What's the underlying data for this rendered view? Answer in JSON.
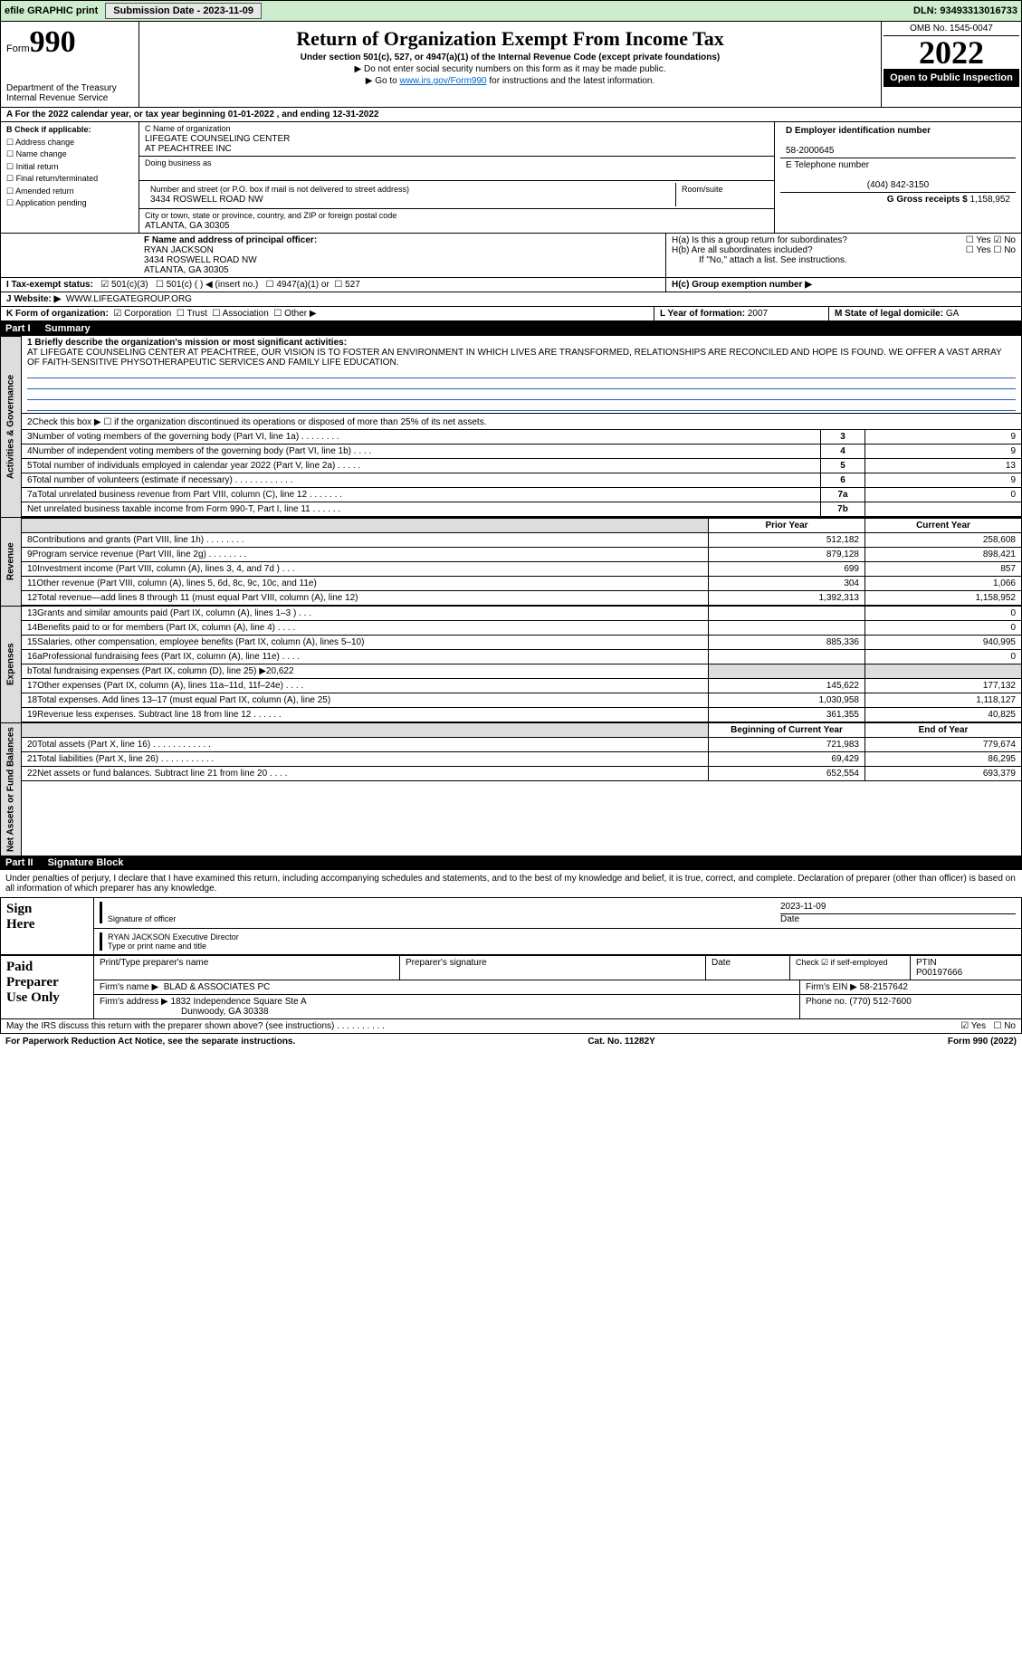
{
  "topbar": {
    "efile": "efile GRAPHIC print",
    "submission_label": "Submission Date - 2023-11-09",
    "dln_label": "DLN: 93493313016733"
  },
  "header": {
    "form_prefix": "Form",
    "form_no": "990",
    "title": "Return of Organization Exempt From Income Tax",
    "subtitle": "Under section 501(c), 527, or 4947(a)(1) of the Internal Revenue Code (except private foundations)",
    "note1": "▶ Do not enter social security numbers on this form as it may be made public.",
    "note2_pre": "▶ Go to ",
    "note2_link": "www.irs.gov/Form990",
    "note2_post": " for instructions and the latest information.",
    "dept": "Department of the Treasury",
    "irs": "Internal Revenue Service",
    "omb": "OMB No. 1545-0047",
    "year": "2022",
    "openpub": "Open to Public Inspection"
  },
  "A": {
    "line": "A For the 2022 calendar year, or tax year beginning 01-01-2022   , and ending 12-31-2022"
  },
  "B": {
    "label": "B Check if applicable:",
    "opts": [
      "Address change",
      "Name change",
      "Initial return",
      "Final return/terminated",
      "Amended return",
      "Application pending"
    ]
  },
  "C": {
    "name_label": "C Name of organization",
    "name1": "LIFEGATE COUNSELING CENTER",
    "name2": "AT PEACHTREE INC",
    "dba_label": "Doing business as",
    "addr_label": "Number and street (or P.O. box if mail is not delivered to street address)",
    "room_label": "Room/suite",
    "addr": "3434 ROSWELL ROAD NW",
    "city_label": "City or town, state or province, country, and ZIP or foreign postal code",
    "city": "ATLANTA, GA  30305"
  },
  "D": {
    "label": "D Employer identification number",
    "val": "58-2000645"
  },
  "E": {
    "label": "E Telephone number",
    "val": "(404) 842-3150"
  },
  "G": {
    "label": "G Gross receipts $",
    "val": "1,158,952"
  },
  "F": {
    "label": "F  Name and address of principal officer:",
    "name": "RYAN JACKSON",
    "addr1": "3434 ROSWELL ROAD NW",
    "addr2": "ATLANTA, GA  30305"
  },
  "H": {
    "a": "H(a)  Is this a group return for subordinates?",
    "b": "H(b)  Are all subordinates included?",
    "bnote": "If \"No,\" attach a list. See instructions.",
    "c": "H(c)  Group exemption number ▶",
    "yes": "Yes",
    "no": "No"
  },
  "I": {
    "label": "I    Tax-exempt status:",
    "o1": "501(c)(3)",
    "o2": "501(c) (  ) ◀ (insert no.)",
    "o3": "4947(a)(1) or",
    "o4": "527"
  },
  "J": {
    "label": "J   Website: ▶",
    "val": "WWW.LIFEGATEGROUP.ORG"
  },
  "K": {
    "label": "K Form of organization:",
    "o1": "Corporation",
    "o2": "Trust",
    "o3": "Association",
    "o4": "Other ▶"
  },
  "L": {
    "label": "L Year of formation:",
    "val": "2007"
  },
  "M": {
    "label": "M State of legal domicile:",
    "val": "GA"
  },
  "part1": {
    "part": "Part I",
    "title": "Summary",
    "m_label": "1  Briefly describe the organization's mission or most significant activities:",
    "mission": "AT LIFEGATE COUNSELING CENTER AT PEACHTREE, OUR VISION IS TO FOSTER AN ENVIRONMENT IN WHICH LIVES ARE TRANSFORMED, RELATIONSHIPS ARE RECONCILED AND HOPE IS FOUND. WE OFFER A VAST ARRAY OF FAITH-SENSITIVE PHYSOTHERAPEUTIC SERVICES AND FAMILY LIFE EDUCATION.",
    "l2": "Check this box ▶ ☐  if the organization discontinued its operations or disposed of more than 25% of its net assets.",
    "gov": [
      {
        "n": "3",
        "t": "Number of voting members of the governing body (Part VI, line 1a)   .    .    .    .    .    .    .    .",
        "c": "3",
        "v": "9"
      },
      {
        "n": "4",
        "t": "Number of independent voting members of the governing body (Part VI, line 1b)   .    .    .    .",
        "c": "4",
        "v": "9"
      },
      {
        "n": "5",
        "t": "Total number of individuals employed in calendar year 2022 (Part V, line 2a)   .    .    .    .    .",
        "c": "5",
        "v": "13"
      },
      {
        "n": "6",
        "t": "Total number of volunteers (estimate if necessary)   .    .    .    .    .    .    .    .    .    .    .    .",
        "c": "6",
        "v": "9"
      },
      {
        "n": "7a",
        "t": "Total unrelated business revenue from Part VIII, column (C), line 12   .    .    .    .    .    .    .",
        "c": "7a",
        "v": "0"
      },
      {
        "n": "",
        "t": "Net unrelated business taxable income from Form 990-T, Part I, line 11   .    .    .    .    .    .",
        "c": "7b",
        "v": ""
      }
    ],
    "prior": "Prior Year",
    "current": "Current Year",
    "rev": [
      {
        "n": "8",
        "t": "Contributions and grants (Part VIII, line 1h)   .    .    .    .    .    .    .    .",
        "p": "512,182",
        "c": "258,608"
      },
      {
        "n": "9",
        "t": "Program service revenue (Part VIII, line 2g)   .    .    .    .    .    .    .    .",
        "p": "879,128",
        "c": "898,421"
      },
      {
        "n": "10",
        "t": "Investment income (Part VIII, column (A), lines 3, 4, and 7d )   .    .    .",
        "p": "699",
        "c": "857"
      },
      {
        "n": "11",
        "t": "Other revenue (Part VIII, column (A), lines 5, 6d, 8c, 9c, 10c, and 11e)",
        "p": "304",
        "c": "1,066"
      },
      {
        "n": "12",
        "t": "Total revenue—add lines 8 through 11 (must equal Part VIII, column (A), line 12)",
        "p": "1,392,313",
        "c": "1,158,952"
      }
    ],
    "exp": [
      {
        "n": "13",
        "t": "Grants and similar amounts paid (Part IX, column (A), lines 1–3 )   .    .    .",
        "p": "",
        "c": "0"
      },
      {
        "n": "14",
        "t": "Benefits paid to or for members (Part IX, column (A), line 4)   .    .    .    .",
        "p": "",
        "c": "0"
      },
      {
        "n": "15",
        "t": "Salaries, other compensation, employee benefits (Part IX, column (A), lines 5–10)",
        "p": "885,336",
        "c": "940,995"
      },
      {
        "n": "16a",
        "t": "Professional fundraising fees (Part IX, column (A), line 11e)   .    .    .    .",
        "p": "",
        "c": "0"
      },
      {
        "n": "b",
        "t": "Total fundraising expenses (Part IX, column (D), line 25) ▶20,622",
        "p": "GRAY",
        "c": "GRAY"
      },
      {
        "n": "17",
        "t": "Other expenses (Part IX, column (A), lines 11a–11d, 11f–24e)   .    .    .    .",
        "p": "145,622",
        "c": "177,132"
      },
      {
        "n": "18",
        "t": "Total expenses. Add lines 13–17 (must equal Part IX, column (A), line 25)",
        "p": "1,030,958",
        "c": "1,118,127"
      },
      {
        "n": "19",
        "t": "Revenue less expenses. Subtract line 18 from line 12   .    .    .    .    .    .",
        "p": "361,355",
        "c": "40,825"
      }
    ],
    "boy": "Beginning of Current Year",
    "eoy": "End of Year",
    "net": [
      {
        "n": "20",
        "t": "Total assets (Part X, line 16)   .    .    .    .    .    .    .    .    .    .    .    .",
        "p": "721,983",
        "c": "779,674"
      },
      {
        "n": "21",
        "t": "Total liabilities (Part X, line 26)   .    .    .    .    .    .    .    .    .    .    .",
        "p": "69,429",
        "c": "86,295"
      },
      {
        "n": "22",
        "t": "Net assets or fund balances. Subtract line 21 from line 20   .    .    .    .",
        "p": "652,554",
        "c": "693,379"
      }
    ]
  },
  "part2": {
    "part": "Part II",
    "title": "Signature Block",
    "penalties": "Under penalties of perjury, I declare that I have examined this return, including accompanying schedules and statements, and to the best of my knowledge and belief, it is true, correct, and complete. Declaration of preparer (other than officer) is based on all information of which preparer has any knowledge."
  },
  "sign": {
    "here_l1": "Sign",
    "here_l2": "Here",
    "sig_label": "Signature of officer",
    "date_label": "Date",
    "date": "2023-11-09",
    "name": "RYAN JACKSON  Executive Director",
    "name_label": "Type or print name and title"
  },
  "paid": {
    "l1": "Paid",
    "l2": "Preparer",
    "l3": "Use Only",
    "pt_label": "Print/Type preparer's name",
    "ps_label": "Preparer's signature",
    "d_label": "Date",
    "check_label": "Check ☑ if self-employed",
    "ptin_label": "PTIN",
    "ptin": "P00197666",
    "firm_name_label": "Firm's name    ▶",
    "firm_name": "BLAD & ASSOCIATES PC",
    "firm_ein_label": "Firm's EIN ▶",
    "firm_ein": "58-2157642",
    "firm_addr_label": "Firm's address ▶",
    "firm_addr1": "1832 Independence Square Ste A",
    "firm_addr2": "Dunwoody, GA  30338",
    "phone_label": "Phone no.",
    "phone": "(770) 512-7600"
  },
  "may": {
    "text": "May the IRS discuss this return with the preparer shown above? (see instructions)   .    .    .    .    .    .    .    .    .    .",
    "yes": "Yes",
    "no": "No"
  },
  "footer": {
    "left": "For Paperwork Reduction Act Notice, see the separate instructions.",
    "mid": "Cat. No. 11282Y",
    "right": "Form 990 (2022)"
  },
  "tabs": {
    "gov": "Activities & Governance",
    "rev": "Revenue",
    "exp": "Expenses",
    "net": "Net Assets or Fund Balances"
  }
}
